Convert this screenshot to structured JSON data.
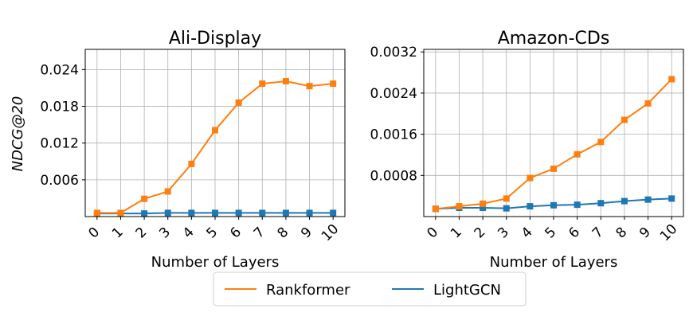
{
  "colors": {
    "Rankformer": "#ff7f0e",
    "LightGCN": "#1f77b4"
  },
  "legend": [
    "Rankformer",
    "LightGCN"
  ],
  "chart_data": [
    {
      "type": "line",
      "title": "Ali-Display",
      "xlabel": "Number of Layers",
      "ylabel": "NDCG@20",
      "x": [
        0,
        1,
        2,
        3,
        4,
        5,
        6,
        7,
        8,
        9,
        10
      ],
      "ylim": [
        0,
        0.0273
      ],
      "yticks": [
        "0.006",
        "0.012",
        "0.018",
        "0.024"
      ],
      "ytick_values": [
        0.006,
        0.012,
        0.018,
        0.024
      ],
      "grid": true,
      "series": [
        {
          "name": "Rankformer",
          "values": [
            0.0006,
            0.0006,
            0.0029,
            0.0041,
            0.0086,
            0.0141,
            0.0186,
            0.0217,
            0.0221,
            0.0213,
            0.0217
          ]
        },
        {
          "name": "LightGCN",
          "values": [
            0.0005,
            0.0005,
            0.0005,
            0.0006,
            0.0006,
            0.0006,
            0.0006,
            0.0006,
            0.0006,
            0.0006,
            0.0006
          ]
        }
      ]
    },
    {
      "type": "line",
      "title": "Amazon-CDs",
      "xlabel": "Number of Layers",
      "ylabel": "",
      "x": [
        0,
        1,
        2,
        3,
        4,
        5,
        6,
        7,
        8,
        9,
        10
      ],
      "ylim": [
        0,
        0.00325
      ],
      "yticks": [
        "0.0008",
        "0.0016",
        "0.0024",
        "0.0032"
      ],
      "ytick_values": [
        0.0008,
        0.0016,
        0.0024,
        0.0032
      ],
      "grid": true,
      "series": [
        {
          "name": "Rankformer",
          "values": [
            0.00015,
            0.0002,
            0.00025,
            0.00035,
            0.00075,
            0.00093,
            0.00121,
            0.00145,
            0.00188,
            0.0022,
            0.00267
          ]
        },
        {
          "name": "LightGCN",
          "values": [
            0.00015,
            0.00017,
            0.00017,
            0.00016,
            0.0002,
            0.00022,
            0.00023,
            0.00026,
            0.0003,
            0.00033,
            0.00035
          ]
        }
      ]
    }
  ]
}
